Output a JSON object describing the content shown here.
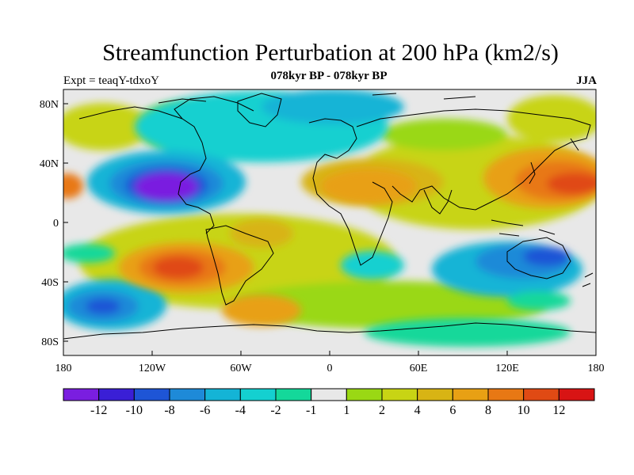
{
  "title": "Streamfunction Perturbation at 200 hPa (km2/s)",
  "subtitle_center": "078kyr BP - 078kyr BP",
  "subtitle_left": "Expt = teaqY-tdxoY",
  "subtitle_right": "JJA",
  "x_ticks": [
    "180",
    "120W",
    "60W",
    "0",
    "60E",
    "120E",
    "180"
  ],
  "y_ticks": [
    "80N",
    "40N",
    "0",
    "40S",
    "80S"
  ],
  "colorbar": {
    "colors": [
      "#7a1ee0",
      "#3a1fd6",
      "#1e55d6",
      "#1e8ad8",
      "#14b4d6",
      "#14d0d0",
      "#14d89a",
      "#e8e8e8",
      "#9ad814",
      "#c8d414",
      "#d8b414",
      "#e8a014",
      "#e87814",
      "#e04a14",
      "#d81414"
    ],
    "labels": [
      "-12",
      "-10",
      "-8",
      "-6",
      "-4",
      "-2",
      "-1",
      "1",
      "2",
      "4",
      "6",
      "8",
      "10",
      "12"
    ]
  }
}
